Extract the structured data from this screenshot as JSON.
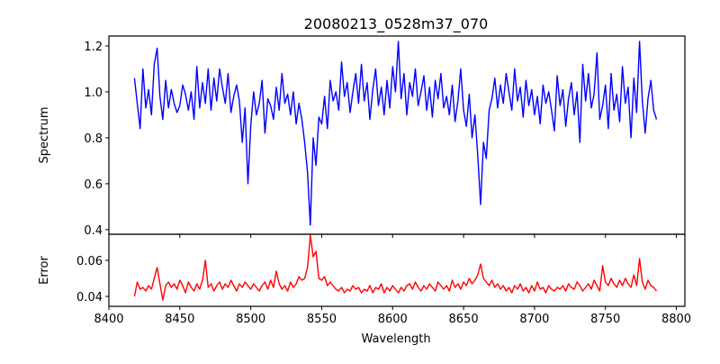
{
  "chart_data": [
    {
      "type": "line",
      "title": "20080213_0528m37_070",
      "xlabel": "",
      "ylabel": "Spectrum",
      "xlim": [
        8400,
        8806
      ],
      "ylim": [
        0.38,
        1.243
      ],
      "xticks": [
        8400,
        8450,
        8500,
        8550,
        8600,
        8650,
        8700,
        8750,
        8800
      ],
      "yticks": [
        "0.4",
        "0.6",
        "0.8",
        "1.0",
        "1.2"
      ],
      "x_start": 8418,
      "x_step": 2,
      "series": [
        {
          "name": "Spectrum",
          "color": "#0000ff",
          "values": [
            1.06,
            0.95,
            0.84,
            1.1,
            0.93,
            1.01,
            0.9,
            1.12,
            1.19,
            0.98,
            0.88,
            1.05,
            0.93,
            1.01,
            0.95,
            0.91,
            0.94,
            1.03,
            0.99,
            0.92,
            1.0,
            0.88,
            1.11,
            0.93,
            1.04,
            0.95,
            1.1,
            0.92,
            1.06,
            0.96,
            1.1,
            1.02,
            0.95,
            1.08,
            0.91,
            0.98,
            1.03,
            0.96,
            0.78,
            0.93,
            0.6,
            0.85,
            1.0,
            0.9,
            0.95,
            1.05,
            0.82,
            0.97,
            0.94,
            0.88,
            1.02,
            0.92,
            1.08,
            0.95,
            0.99,
            0.9,
            1.0,
            0.86,
            0.95,
            0.88,
            0.78,
            0.65,
            0.42,
            0.8,
            0.68,
            0.89,
            0.86,
            0.98,
            0.84,
            1.05,
            0.96,
            1.0,
            0.92,
            1.13,
            0.98,
            1.04,
            0.91,
            1.0,
            1.08,
            0.95,
            1.12,
            0.96,
            1.04,
            0.88,
            1.01,
            1.1,
            0.94,
            1.02,
            0.9,
            1.05,
            0.93,
            1.11,
            1.0,
            1.22,
            0.97,
            1.08,
            0.9,
            1.04,
            0.98,
            1.1,
            0.94,
            1.0,
            1.07,
            0.92,
            1.02,
            0.89,
            1.05,
            0.97,
            1.08,
            0.93,
            0.98,
            0.9,
            1.03,
            0.87,
            0.96,
            1.1,
            0.92,
            0.85,
            0.99,
            0.8,
            0.9,
            0.72,
            0.51,
            0.78,
            0.71,
            0.92,
            0.97,
            1.06,
            0.93,
            1.03,
            0.95,
            1.08,
            1.0,
            0.92,
            1.1,
            0.96,
            1.02,
            0.89,
            1.05,
            0.94,
            1.01,
            0.9,
            0.98,
            0.86,
            1.03,
            0.95,
            1.0,
            0.92,
            0.83,
            1.07,
            0.94,
            1.01,
            0.85,
            0.97,
            1.04,
            0.9,
            1.0,
            0.78,
            1.12,
            0.96,
            1.08,
            0.93,
            0.99,
            1.17,
            0.88,
            0.94,
            1.03,
            0.84,
            1.08,
            0.92,
            0.99,
            0.87,
            1.11,
            0.95,
            1.02,
            0.8,
            1.06,
            0.91,
            1.22,
            0.96,
            0.82,
            0.97,
            1.05,
            0.92,
            0.88
          ]
        }
      ]
    },
    {
      "type": "line",
      "title": "",
      "xlabel": "Wavelength",
      "ylabel": "Error",
      "xlim": [
        8400,
        8806
      ],
      "ylim": [
        0.0345,
        0.0745
      ],
      "xticks": [
        8400,
        8450,
        8500,
        8550,
        8600,
        8650,
        8700,
        8750,
        8800
      ],
      "yticks": [
        "0.04",
        "0.06"
      ],
      "x_start": 8418,
      "x_step": 2,
      "series": [
        {
          "name": "Error",
          "color": "#ff0000",
          "values": [
            0.04,
            0.048,
            0.044,
            0.045,
            0.043,
            0.046,
            0.044,
            0.05,
            0.056,
            0.047,
            0.038,
            0.046,
            0.048,
            0.045,
            0.047,
            0.044,
            0.049,
            0.046,
            0.042,
            0.048,
            0.045,
            0.043,
            0.047,
            0.044,
            0.049,
            0.06,
            0.045,
            0.047,
            0.043,
            0.046,
            0.048,
            0.044,
            0.047,
            0.045,
            0.049,
            0.046,
            0.043,
            0.047,
            0.045,
            0.048,
            0.046,
            0.044,
            0.047,
            0.045,
            0.043,
            0.046,
            0.048,
            0.044,
            0.049,
            0.045,
            0.054,
            0.047,
            0.044,
            0.046,
            0.043,
            0.048,
            0.045,
            0.047,
            0.051,
            0.049,
            0.05,
            0.056,
            0.074,
            0.062,
            0.065,
            0.05,
            0.049,
            0.051,
            0.046,
            0.048,
            0.046,
            0.044,
            0.043,
            0.045,
            0.042,
            0.044,
            0.043,
            0.046,
            0.044,
            0.045,
            0.042,
            0.044,
            0.043,
            0.046,
            0.042,
            0.045,
            0.044,
            0.047,
            0.042,
            0.045,
            0.043,
            0.046,
            0.044,
            0.042,
            0.045,
            0.043,
            0.046,
            0.047,
            0.044,
            0.048,
            0.045,
            0.043,
            0.046,
            0.044,
            0.047,
            0.045,
            0.043,
            0.048,
            0.046,
            0.044,
            0.046,
            0.043,
            0.049,
            0.045,
            0.047,
            0.044,
            0.048,
            0.046,
            0.05,
            0.047,
            0.049,
            0.052,
            0.058,
            0.05,
            0.048,
            0.046,
            0.049,
            0.045,
            0.047,
            0.044,
            0.046,
            0.043,
            0.045,
            0.042,
            0.046,
            0.044,
            0.047,
            0.043,
            0.045,
            0.042,
            0.046,
            0.043,
            0.048,
            0.044,
            0.045,
            0.042,
            0.046,
            0.044,
            0.043,
            0.045,
            0.044,
            0.046,
            0.043,
            0.047,
            0.045,
            0.044,
            0.048,
            0.046,
            0.043,
            0.045,
            0.047,
            0.044,
            0.049,
            0.046,
            0.043,
            0.057,
            0.048,
            0.046,
            0.05,
            0.047,
            0.045,
            0.049,
            0.046,
            0.05,
            0.047,
            0.045,
            0.052,
            0.046,
            0.061,
            0.048,
            0.044,
            0.049,
            0.046,
            0.045,
            0.043
          ]
        }
      ]
    }
  ]
}
